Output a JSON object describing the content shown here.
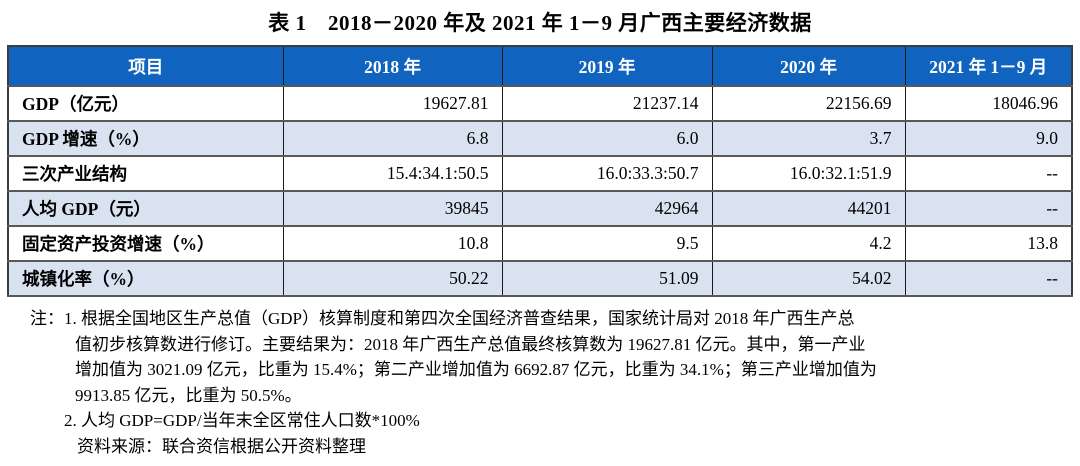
{
  "title": "表 1　2018－2020 年及 2021 年 1－9 月广西主要经济数据",
  "table": {
    "headers": [
      "项目",
      "2018 年",
      "2019 年",
      "2020 年",
      "2021 年 1－9 月"
    ],
    "rows": [
      {
        "label": "GDP（亿元）",
        "values": [
          "19627.81",
          "21237.14",
          "22156.69",
          "18046.96"
        ]
      },
      {
        "label": "GDP 增速（%）",
        "values": [
          "6.8",
          "6.0",
          "3.7",
          "9.0"
        ]
      },
      {
        "label": "三次产业结构",
        "values": [
          "15.4:34.1:50.5",
          "16.0:33.3:50.7",
          "16.0:32.1:51.9",
          "--"
        ]
      },
      {
        "label": "人均 GDP（元）",
        "values": [
          "39845",
          "42964",
          "44201",
          "--"
        ]
      },
      {
        "label": "固定资产投资增速（%）",
        "values": [
          "10.8",
          "9.5",
          "4.2",
          "13.8"
        ]
      },
      {
        "label": "城镇化率（%）",
        "values": [
          "50.22",
          "51.09",
          "54.02",
          "--"
        ]
      }
    ]
  },
  "notes": {
    "line1": "注：1. 根据全国地区生产总值（GDP）核算制度和第四次全国经济普查结果，国家统计局对 2018 年广西生产总",
    "line2": "值初步核算数进行修订。主要结果为：2018 年广西生产总值最终核算数为 19627.81 亿元。其中，第一产业",
    "line3": "增加值为 3021.09 亿元，比重为 15.4%；第二产业增加值为 6692.87 亿元，比重为 34.1%；第三产业增加值为",
    "line4": "9913.85 亿元，比重为 50.5%。",
    "line5": "2. 人均 GDP=GDP/当年末全区常住人口数*100%",
    "line6": "资料来源：联合资信根据公开资料整理"
  },
  "colors": {
    "header_bg": "#1063BE",
    "header_text": "#FFFFFF",
    "stripe_bg": "#D9E2F1",
    "border_dark": "#3D3D3D"
  }
}
